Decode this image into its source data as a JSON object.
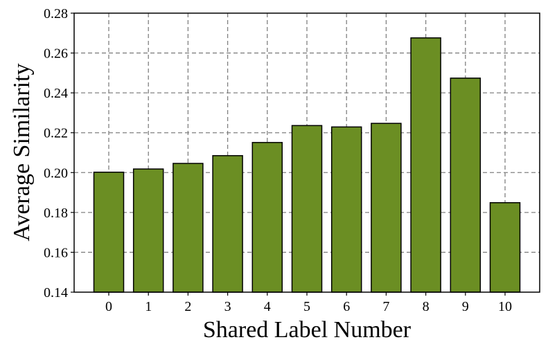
{
  "chart_data": {
    "type": "bar",
    "title": "",
    "xlabel": "Shared Label Number",
    "ylabel": "Average Similarity",
    "categories": [
      "0",
      "1",
      "2",
      "3",
      "4",
      "5",
      "6",
      "7",
      "8",
      "9",
      "10"
    ],
    "values": [
      0.2002,
      0.2018,
      0.2046,
      0.2085,
      0.2151,
      0.2236,
      0.2229,
      0.2247,
      0.2676,
      0.2474,
      0.1849
    ],
    "ylim": [
      0.14,
      0.28
    ],
    "yticks": [
      "0.14",
      "0.16",
      "0.18",
      "0.20",
      "0.22",
      "0.24",
      "0.26",
      "0.28"
    ],
    "grid": true,
    "legend": "none",
    "bar_color": "#6b8e23",
    "edge_color": "#000000"
  }
}
